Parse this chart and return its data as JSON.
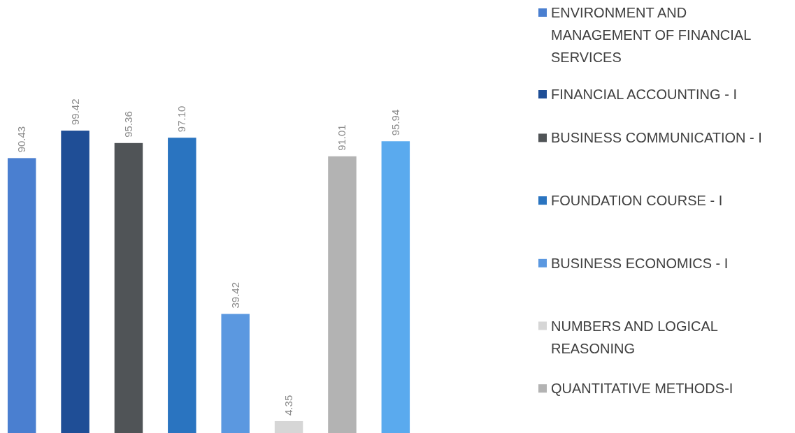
{
  "chart_data": {
    "type": "bar",
    "stacked": true,
    "categories": [
      null,
      null,
      null,
      null,
      null,
      null,
      null,
      null
    ],
    "legend": "right",
    "series": [
      {
        "name": "ENVIRONMENT AND MANAGEMENT OF FINANCIAL SERVICES",
        "color": "#4a7fd0",
        "values": [
          90.43,
          null,
          null,
          null,
          null,
          null,
          null,
          null
        ],
        "value_labels": [
          "90.43",
          null,
          null,
          null,
          null,
          null,
          null,
          null
        ]
      },
      {
        "name": "FINANCIAL ACCOUNTING - I",
        "color": "#1f4e96",
        "values": [
          null,
          99.42,
          null,
          null,
          null,
          null,
          null,
          null
        ],
        "value_labels": [
          null,
          "99.42",
          null,
          null,
          null,
          null,
          null,
          null
        ]
      },
      {
        "name": "BUSINESS COMMUNICATION - I",
        "color": "#505457",
        "values": [
          null,
          null,
          95.36,
          null,
          null,
          null,
          null,
          null
        ],
        "value_labels": [
          null,
          null,
          "95.36",
          null,
          null,
          null,
          null,
          null
        ]
      },
      {
        "name": "FOUNDATION COURSE - I",
        "color": "#2a74c0",
        "values": [
          null,
          null,
          null,
          97.1,
          null,
          null,
          null,
          null
        ],
        "value_labels": [
          null,
          null,
          null,
          "97.10",
          null,
          null,
          null,
          null
        ]
      },
      {
        "name": "BUSINESS ECONOMICS - I",
        "color": "#5b98e0",
        "values": [
          null,
          null,
          null,
          null,
          39.42,
          null,
          null,
          null
        ],
        "value_labels": [
          null,
          null,
          null,
          null,
          "39.42",
          null,
          null,
          null
        ]
      },
      {
        "name": "NUMBERS AND LOGICAL REASONING",
        "color": "#d6d6d6",
        "values": [
          null,
          null,
          null,
          null,
          null,
          4.35,
          null,
          null
        ],
        "value_labels": [
          null,
          null,
          null,
          null,
          null,
          "4.35",
          null,
          null
        ]
      },
      {
        "name": "QUANTITATIVE METHODS-I",
        "color": "#b3b3b3",
        "values": [
          null,
          null,
          null,
          null,
          null,
          null,
          91.01,
          null
        ],
        "value_labels": [
          null,
          null,
          null,
          null,
          null,
          null,
          "91.01",
          null
        ]
      },
      {
        "color": "#5aaaee",
        "values": [
          null,
          null,
          null,
          null,
          null,
          null,
          null,
          95.94
        ],
        "value_labels": [
          null,
          null,
          null,
          null,
          null,
          null,
          null,
          "95.94"
        ]
      }
    ]
  }
}
